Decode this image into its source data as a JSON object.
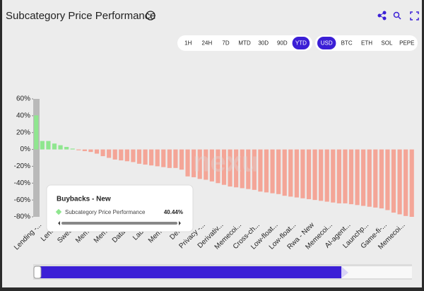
{
  "chart_data": {
    "type": "bar",
    "title": "Subcategory Price Performance",
    "categories": [
      "Lending -...",
      null,
      null,
      "Lendi...",
      null,
      null,
      "Sweet...",
      null,
      null,
      "Meme...",
      null,
      null,
      "Meme...",
      null,
      null,
      "Data -...",
      null,
      null,
      "Laun...",
      null,
      null,
      "Meme...",
      null,
      null,
      "Defi-...",
      null,
      null,
      "Privacy -...",
      null,
      null,
      "Derivativ...",
      null,
      null,
      "Memecoi...",
      null,
      null,
      "Cross-ch...",
      null,
      null,
      "Low-float...",
      null,
      null,
      "Low-float...",
      null,
      null,
      "Rwa - New",
      null,
      null,
      "Memecoi...",
      null,
      null,
      "AI-agent...",
      null,
      null,
      "Launchp...",
      null,
      null,
      "Game-fi-...",
      null,
      null,
      "Memecoi...",
      null,
      null
    ],
    "values": [
      40.44,
      10,
      10,
      7,
      5,
      3,
      1,
      -1,
      -2,
      -3,
      -5,
      -8,
      -10,
      -12,
      -13,
      -14,
      -15,
      -17,
      -18,
      -19,
      -20,
      -21,
      -22,
      -22,
      -24,
      -32,
      -33,
      -35,
      -36,
      -38,
      -40,
      -42,
      -44,
      -45,
      -46,
      -47,
      -48,
      -50,
      -51,
      -52,
      -53,
      -55,
      -56,
      -57,
      -58,
      -59,
      -60,
      -61,
      -62,
      -63,
      -64,
      -64,
      -65,
      -66,
      -67,
      -68,
      -69,
      -70,
      -72,
      -75,
      -77,
      -79,
      -80
    ],
    "positive_color": "#8fe68f",
    "negative_color": "#f4a597",
    "ylim": [
      -80,
      60
    ],
    "yticks": [
      {
        "value": 60,
        "label": "60%"
      },
      {
        "value": 40,
        "label": "40%"
      },
      {
        "value": 20,
        "label": "20%"
      },
      {
        "value": 0,
        "label": "0%"
      },
      {
        "value": -20,
        "label": "-20%"
      },
      {
        "value": -40,
        "label": "-40%"
      },
      {
        "value": -60,
        "label": "-60%"
      },
      {
        "value": -80,
        "label": "-80%"
      }
    ]
  },
  "tooltip": {
    "title": "Buybacks - New",
    "series": "Subcategory Price Performance",
    "label": "40.44%"
  },
  "ranges": [
    "1H",
    "24H",
    "7D",
    "MTD",
    "30D",
    "90D",
    "YTD"
  ],
  "selected_range_index": 6,
  "currencies": [
    "USD",
    "BTC",
    "ETH",
    "SOL",
    "PEPE"
  ],
  "selected_currency_index": 0
}
